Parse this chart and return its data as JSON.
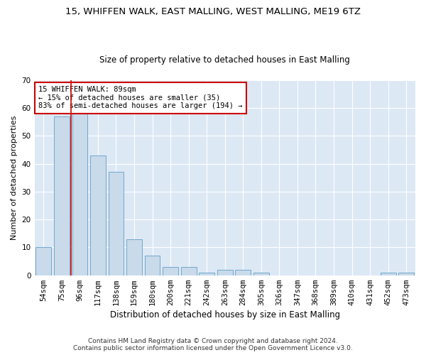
{
  "title_line1": "15, WHIFFEN WALK, EAST MALLING, WEST MALLING, ME19 6TZ",
  "title_line2": "Size of property relative to detached houses in East Malling",
  "xlabel": "Distribution of detached houses by size in East Malling",
  "ylabel": "Number of detached properties",
  "categories": [
    "54sqm",
    "75sqm",
    "96sqm",
    "117sqm",
    "138sqm",
    "159sqm",
    "180sqm",
    "200sqm",
    "221sqm",
    "242sqm",
    "263sqm",
    "284sqm",
    "305sqm",
    "326sqm",
    "347sqm",
    "368sqm",
    "389sqm",
    "410sqm",
    "431sqm",
    "452sqm",
    "473sqm"
  ],
  "values": [
    10,
    57,
    58,
    43,
    37,
    13,
    7,
    3,
    3,
    1,
    2,
    2,
    1,
    0,
    0,
    0,
    0,
    0,
    0,
    1,
    1
  ],
  "bar_color": "#c9daea",
  "bar_edge_color": "#6fa8cc",
  "vline_x": 1.5,
  "vline_color": "#cc0000",
  "annotation_text": "15 WHIFFEN WALK: 89sqm\n← 15% of detached houses are smaller (35)\n83% of semi-detached houses are larger (194) →",
  "annotation_box_color": "#ffffff",
  "annotation_box_edge_color": "#cc0000",
  "ylim": [
    0,
    70
  ],
  "yticks": [
    0,
    10,
    20,
    30,
    40,
    50,
    60,
    70
  ],
  "plot_bg_color": "#dde8f5",
  "grid_color": "#ffffff",
  "fig_bg_color": "#ffffff",
  "footer_line1": "Contains HM Land Registry data © Crown copyright and database right 2024.",
  "footer_line2": "Contains public sector information licensed under the Open Government Licence v3.0.",
  "title1_fontsize": 9.5,
  "title2_fontsize": 8.5,
  "ylabel_fontsize": 8.0,
  "xlabel_fontsize": 8.5,
  "tick_fontsize": 7.5,
  "annot_fontsize": 7.5,
  "footer_fontsize": 6.5
}
